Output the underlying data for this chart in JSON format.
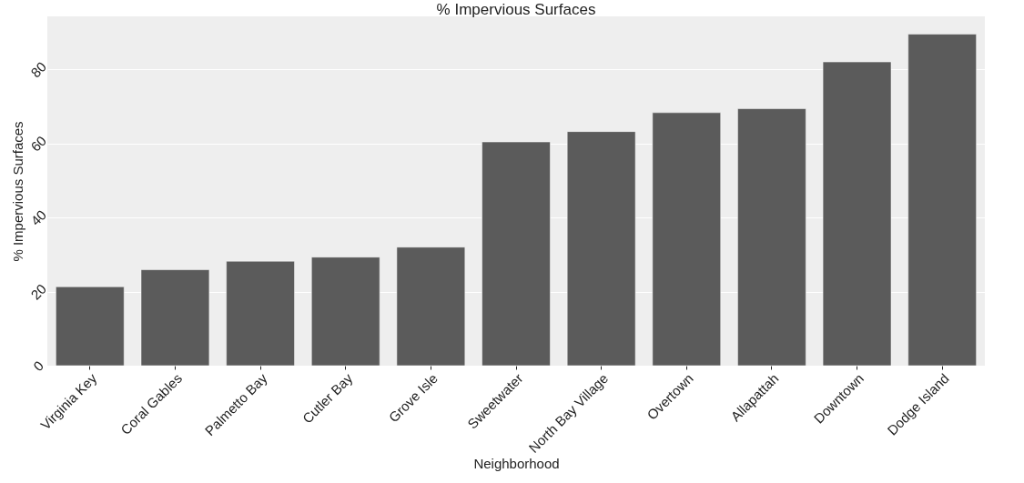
{
  "chart_data": {
    "type": "bar",
    "title": "% Impervious Surfaces",
    "xlabel": "Neighborhood",
    "ylabel": "% Impervious Surfaces",
    "categories": [
      "Virginia Key",
      "Coral Gables",
      "Palmetto Bay",
      "Cutler Bay",
      "Grove Isle",
      "Sweetwater",
      "North Bay Village",
      "Overtown",
      "Allapattah",
      "Downtown",
      "Dodge Island"
    ],
    "values": [
      21.3,
      25.9,
      28.2,
      29.3,
      32.0,
      60.4,
      63.2,
      68.3,
      69.4,
      82.0,
      89.5
    ],
    "color": "#5b5b5b",
    "ylim": [
      0,
      94.3
    ],
    "yticks": [
      0,
      20,
      40,
      60,
      80
    ],
    "grid": "y"
  }
}
